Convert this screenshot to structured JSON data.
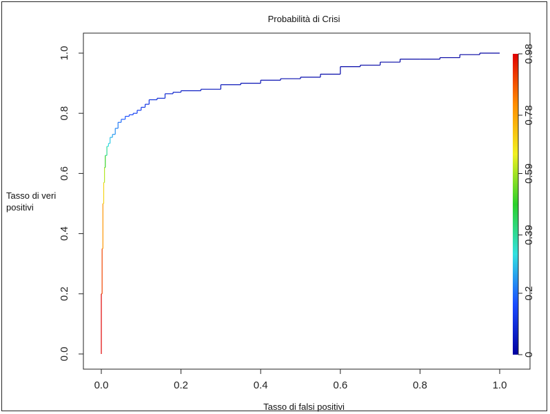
{
  "chart_data": {
    "type": "line",
    "title": "Probabilità di Crisi",
    "xlabel": "Tasso di falsi positivi",
    "ylabel_line1": "Tasso di veri",
    "ylabel_line2": "positivi",
    "xlim": [
      0,
      1
    ],
    "ylim": [
      0,
      1
    ],
    "xticks": [
      0.0,
      0.2,
      0.4,
      0.6,
      0.8,
      1.0
    ],
    "xtick_labels": [
      "0.0",
      "0.2",
      "0.4",
      "0.6",
      "0.8",
      "1.0"
    ],
    "yticks": [
      0.0,
      0.2,
      0.4,
      0.6,
      0.8,
      1.0
    ],
    "ytick_labels": [
      "0.0",
      "0.2",
      "0.4",
      "0.6",
      "0.8",
      "1.0"
    ],
    "colorbar": {
      "ticks": [
        0,
        0.2,
        0.39,
        0.59,
        0.78,
        0.98
      ],
      "tick_labels": [
        "0",
        "0.2",
        "0.39",
        "0.59",
        "0.78",
        "0.98"
      ],
      "range": [
        0,
        0.98
      ],
      "colors": [
        "#0000a0",
        "#1a4cff",
        "#33e0e0",
        "#2bd02b",
        "#f0f020",
        "#ff8c00",
        "#e00000"
      ]
    },
    "grid": false,
    "series": [
      {
        "x": [
          0.0,
          0.0,
          0.002,
          0.004,
          0.006,
          0.008,
          0.01,
          0.014,
          0.018,
          0.022,
          0.028,
          0.035,
          0.042,
          0.05,
          0.06,
          0.07,
          0.08,
          0.09,
          0.1,
          0.11,
          0.12,
          0.14,
          0.16,
          0.18,
          0.2,
          0.25,
          0.3,
          0.35,
          0.4,
          0.45,
          0.5,
          0.55,
          0.6,
          0.65,
          0.7,
          0.75,
          0.8,
          0.85,
          0.9,
          0.95,
          1.0
        ],
        "y": [
          0.0,
          0.2,
          0.35,
          0.5,
          0.57,
          0.62,
          0.66,
          0.69,
          0.7,
          0.72,
          0.73,
          0.75,
          0.77,
          0.78,
          0.79,
          0.795,
          0.8,
          0.81,
          0.82,
          0.83,
          0.845,
          0.85,
          0.865,
          0.87,
          0.875,
          0.88,
          0.895,
          0.9,
          0.91,
          0.915,
          0.92,
          0.93,
          0.955,
          0.96,
          0.97,
          0.98,
          0.98,
          0.985,
          0.995,
          1.0,
          1.0
        ],
        "c": [
          0.98,
          0.9,
          0.8,
          0.7,
          0.6,
          0.5,
          0.4,
          0.33,
          0.3,
          0.27,
          0.24,
          0.22,
          0.2,
          0.18,
          0.16,
          0.15,
          0.14,
          0.13,
          0.12,
          0.11,
          0.1,
          0.09,
          0.08,
          0.07,
          0.06,
          0.05,
          0.04,
          0.035,
          0.03,
          0.025,
          0.02,
          0.016,
          0.013,
          0.01,
          0.008,
          0.006,
          0.004,
          0.003,
          0.002,
          0.001,
          0.0
        ]
      }
    ]
  }
}
